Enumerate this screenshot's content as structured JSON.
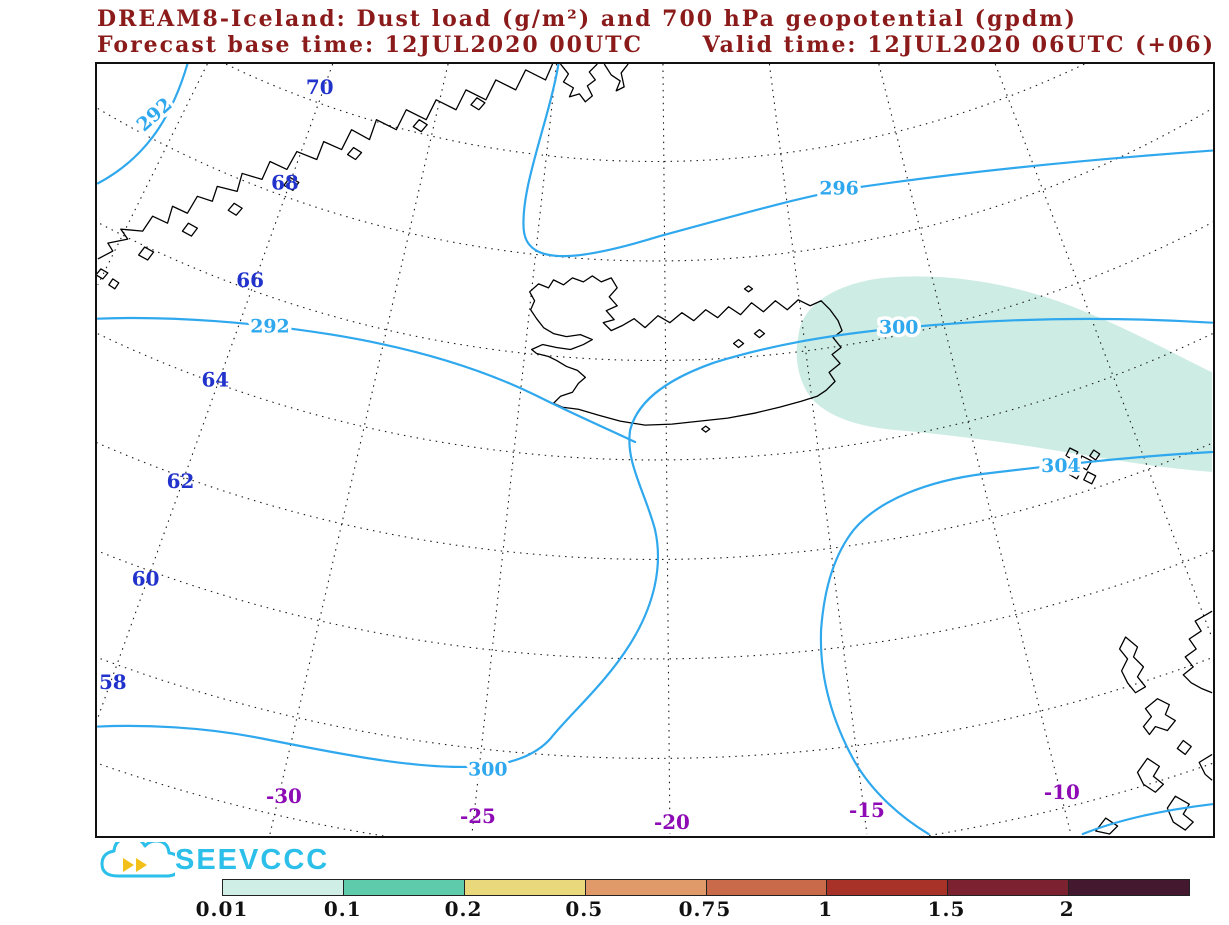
{
  "header": {
    "title_line1": "DREAM8-Iceland: Dust load (g/m²) and 700 hPa geopotential (gpdm)",
    "title_line2a": "Forecast base time: 12JUL2020 00UTC",
    "title_line2b": "Valid time: 12JUL2020 06UTC (+06)"
  },
  "map": {
    "lat_labels": [
      "70",
      "68",
      "66",
      "64",
      "62",
      "60",
      "58"
    ],
    "lon_labels": [
      "-30",
      "-25",
      "-20",
      "-15",
      "-10"
    ],
    "contour_labels": [
      "292",
      "296",
      "292",
      "300",
      "300",
      "304"
    ],
    "contour_color": "#2fa8ee",
    "dust_fill_color": "#cdece4",
    "lat_label_color": "#2233cc",
    "lon_label_color": "#8d0ab5"
  },
  "logo": {
    "text": "SEEVCCC",
    "color": "#2bbfe9"
  },
  "colorbar": {
    "labels": [
      "0.01",
      "0.1",
      "0.2",
      "0.5",
      "0.75",
      "1",
      "1.5",
      "2"
    ],
    "colors": [
      "#cfeee6",
      "#5ecbaa",
      "#e9d87c",
      "#e09a6a",
      "#c96a4a",
      "#a93228",
      "#7c2130",
      "#44182f"
    ]
  },
  "chart_data": {
    "type": "heatmap",
    "subtype": "meteorological contour map (model output)",
    "title": "DREAM8-Iceland: Dust load (g/m²) and 700 hPa geopotential (gpdm)",
    "forecast_base_time": "12JUL2020 00UTC",
    "valid_time": "12JUL2020 06UTC",
    "forecast_hour": "+06",
    "region": "Iceland / North Atlantic (Greenland coast top-left, Faroe Islands right, Scotland bottom-right)",
    "lat_ticks": [
      70,
      68,
      66,
      64,
      62,
      60,
      58
    ],
    "lon_ticks": [
      -30,
      -25,
      -20,
      -15,
      -10
    ],
    "grid": "dotted graticule",
    "geopotential_contours_gpdm": {
      "levels_visible": [
        292,
        296,
        300,
        304
      ],
      "interval": 4,
      "label_occurrences": [
        "292",
        "296",
        "292",
        "300",
        "300",
        "304"
      ],
      "pattern": "292 upper-left, 296 arcing across the top, 300 through Iceland dipping south in a central trough and returning along the bottom-left, 304 near Faroe Islands to lower right"
    },
    "dust_load_shading_g_m2": {
      "boundaries": [
        0.01,
        0.1,
        0.2,
        0.5,
        0.75,
        1,
        1.5,
        2
      ],
      "segment_colors": [
        "#cfeee6",
        "#5ecbaa",
        "#e9d87c",
        "#e09a6a",
        "#c96a4a",
        "#a93228",
        "#7c2130",
        "#44182f"
      ],
      "shaded_area": "single pale band (~0.01–0.1 g/m²) stretching east-southeast from eastern Iceland past the Faroe Islands to the right map edge"
    },
    "legend_position": "horizontal colorbar at bottom",
    "branding": "SEEVCCC cloud logo, bottom-left"
  }
}
